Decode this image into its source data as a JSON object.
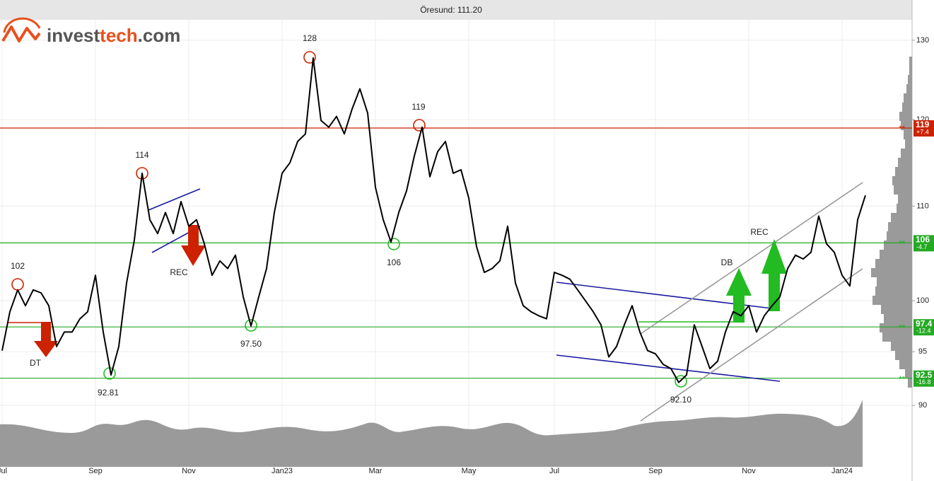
{
  "logo": {
    "parts": [
      "invest",
      "tech",
      ".com"
    ]
  },
  "chart_data": {
    "type": "line",
    "title": "Öresund: 111.20",
    "color": "#000000",
    "log_scale": true,
    "grid": true,
    "ylim": [
      84.6,
      132.7
    ],
    "yticks": [
      90,
      95,
      100,
      110,
      120,
      130
    ],
    "categories": [
      "Jul",
      null,
      null,
      null,
      null,
      null,
      null,
      null,
      null,
      null,
      null,
      null,
      "Sep",
      null,
      null,
      null,
      null,
      null,
      null,
      null,
      null,
      null,
      null,
      null,
      "Nov",
      null,
      null,
      null,
      null,
      null,
      null,
      null,
      null,
      null,
      null,
      null,
      "Jan23",
      null,
      null,
      null,
      null,
      null,
      null,
      null,
      null,
      null,
      null,
      null,
      "Mar",
      null,
      null,
      null,
      null,
      null,
      null,
      null,
      null,
      null,
      null,
      null,
      "May",
      null,
      null,
      null,
      null,
      null,
      null,
      null,
      null,
      null,
      null,
      "Jul",
      null,
      null,
      null,
      null,
      null,
      null,
      null,
      null,
      null,
      null,
      null,
      null,
      "Sep",
      null,
      null,
      null,
      null,
      null,
      null,
      null,
      null,
      null,
      null,
      null,
      "Nov",
      null,
      null,
      null,
      null,
      null,
      null,
      null,
      null,
      null,
      null,
      null,
      "Jan24",
      null,
      null,
      null
    ],
    "values": [
      95.1,
      98.9,
      101.1,
      99.5,
      101.1,
      100.8,
      99.5,
      95.5,
      96.9,
      96.9,
      98.2,
      98.9,
      102.6,
      96.9,
      92.8,
      95.5,
      101.8,
      106.3,
      113.7,
      108.5,
      107.0,
      109.3,
      107.0,
      110.5,
      107.8,
      108.5,
      105.9,
      102.6,
      104.1,
      103.3,
      104.7,
      100.4,
      97.5,
      100.4,
      103.3,
      109.3,
      113.7,
      114.9,
      117.4,
      118.3,
      127.7,
      119.9,
      119.1,
      120.4,
      118.3,
      121.3,
      123.8,
      120.8,
      112.1,
      108.5,
      106.1,
      109.3,
      111.7,
      115.7,
      119.1,
      113.3,
      116.2,
      117.4,
      113.7,
      114.1,
      110.9,
      105.6,
      102.9,
      103.3,
      104.1,
      107.8,
      101.8,
      99.5,
      98.9,
      98.5,
      98.2,
      102.9,
      102.6,
      102.2,
      101.1,
      100.0,
      98.9,
      97.6,
      94.5,
      95.5,
      97.6,
      99.5,
      96.9,
      95.1,
      94.8,
      93.8,
      93.4,
      92.1,
      92.8,
      97.6,
      95.5,
      93.4,
      94.1,
      96.9,
      98.9,
      98.5,
      99.5,
      96.9,
      98.5,
      99.5,
      100.4,
      103.3,
      104.7,
      104.3,
      105.0,
      108.9,
      105.9,
      105.0,
      102.6,
      101.5,
      108.5,
      111.2
    ],
    "level_marker": "**",
    "levels": [
      {
        "value": 119,
        "change": "+7.4",
        "color": "#cc2200"
      },
      {
        "value": 106,
        "change": "-4.7",
        "color": "#22aa22"
      },
      {
        "value": 97.4,
        "change": "-12.4",
        "color": "#22aa22"
      },
      {
        "value": 92.5,
        "change": "-16.8",
        "color": "#22aa22"
      }
    ],
    "pivots": [
      "102",
      "114",
      "128",
      "119",
      "106",
      "97.50",
      "92.81",
      "92.10"
    ],
    "patterns": [
      "DT",
      "REC",
      "REC",
      "DB"
    ]
  }
}
